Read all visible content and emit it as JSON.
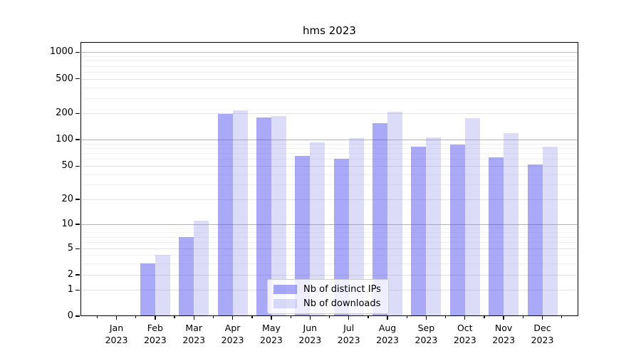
{
  "chart_data": {
    "type": "bar",
    "title": "hms 2023",
    "categories": [
      "Jan\n2023",
      "Feb\n2023",
      "Mar\n2023",
      "Apr\n2023",
      "May\n2023",
      "Jun\n2023",
      "Jul\n2023",
      "Aug\n2023",
      "Sep\n2023",
      "Oct\n2023",
      "Nov\n2023",
      "Dec\n2023"
    ],
    "series": [
      {
        "name": "Nb of distinct IPs",
        "color": "#4040ed",
        "alpha": 0.45,
        "values": [
          0,
          3,
          7,
          198,
          181,
          65,
          60,
          155,
          83,
          88,
          63,
          52
        ]
      },
      {
        "name": "Nb of downloads",
        "color": "#8a8ae8",
        "alpha": 0.3,
        "values": [
          0,
          4,
          11,
          215,
          188,
          92,
          103,
          209,
          105,
          176,
          119,
          83
        ]
      }
    ],
    "yscale": "symlog",
    "ylim": [
      0,
      1000
    ],
    "yticks": [
      0,
      1,
      2,
      5,
      10,
      20,
      50,
      100,
      200,
      500,
      1000
    ],
    "xlabel": "",
    "ylabel": "",
    "grid": true,
    "legend_position": "lower center"
  }
}
